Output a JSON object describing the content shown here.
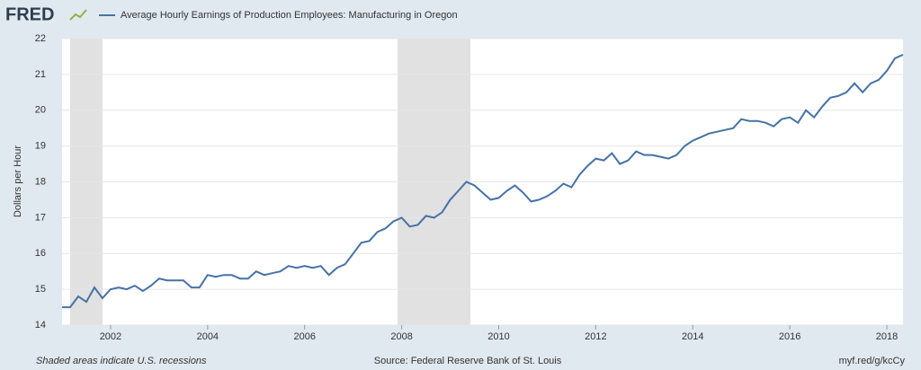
{
  "chart_data": {
    "type": "line",
    "logo": "FRED",
    "title": "Average Hourly Earnings of Production Employees: Manufacturing in Oregon",
    "ylabel": "Dollars per Hour",
    "note": "Shaded areas indicate U.S. recessions",
    "source": "Source: Federal Reserve Bank of St. Louis",
    "link": "myf.red/g/kcCy",
    "xlim": [
      2001,
      2018.333
    ],
    "xticks": [
      2002,
      2004,
      2006,
      2008,
      2010,
      2012,
      2014,
      2016,
      2018
    ],
    "ylim": [
      14,
      22
    ],
    "yticks": [
      14,
      15,
      16,
      17,
      18,
      19,
      20,
      21,
      22
    ],
    "grid": true,
    "recessions": [
      [
        2001.167,
        2001.833
      ],
      [
        2007.917,
        2009.417
      ]
    ],
    "recession_color": "#e1e1e1",
    "series": [
      {
        "name": "Average Hourly Earnings of Production Employees: Manufacturing in Oregon",
        "color": "#4572a7",
        "x": [
          2001,
          2001.167,
          2001.333,
          2001.5,
          2001.667,
          2001.833,
          2002,
          2002.167,
          2002.333,
          2002.5,
          2002.667,
          2002.833,
          2003,
          2003.167,
          2003.333,
          2003.5,
          2003.667,
          2003.833,
          2004,
          2004.167,
          2004.333,
          2004.5,
          2004.667,
          2004.833,
          2005,
          2005.167,
          2005.333,
          2005.5,
          2005.667,
          2005.833,
          2006,
          2006.167,
          2006.333,
          2006.5,
          2006.667,
          2006.833,
          2007,
          2007.167,
          2007.333,
          2007.5,
          2007.667,
          2007.833,
          2008,
          2008.167,
          2008.333,
          2008.5,
          2008.667,
          2008.833,
          2009,
          2009.167,
          2009.333,
          2009.5,
          2009.667,
          2009.833,
          2010,
          2010.167,
          2010.333,
          2010.5,
          2010.667,
          2010.833,
          2011,
          2011.167,
          2011.333,
          2011.5,
          2011.667,
          2011.833,
          2012,
          2012.167,
          2012.333,
          2012.5,
          2012.667,
          2012.833,
          2013,
          2013.167,
          2013.333,
          2013.5,
          2013.667,
          2013.833,
          2014,
          2014.167,
          2014.333,
          2014.5,
          2014.667,
          2014.833,
          2015,
          2015.167,
          2015.333,
          2015.5,
          2015.667,
          2015.833,
          2016,
          2016.167,
          2016.333,
          2016.5,
          2016.667,
          2016.833,
          2017,
          2017.167,
          2017.333,
          2017.5,
          2017.667,
          2017.833,
          2018,
          2018.167,
          2018.333
        ],
        "values": [
          14.5,
          14.5,
          14.8,
          14.65,
          15.05,
          14.75,
          15.0,
          15.05,
          15.0,
          15.1,
          14.95,
          15.1,
          15.3,
          15.25,
          15.25,
          15.25,
          15.05,
          15.05,
          15.4,
          15.35,
          15.4,
          15.4,
          15.3,
          15.3,
          15.5,
          15.4,
          15.45,
          15.5,
          15.65,
          15.6,
          15.65,
          15.6,
          15.65,
          15.4,
          15.6,
          15.7,
          16.0,
          16.3,
          16.35,
          16.6,
          16.7,
          16.9,
          17.0,
          16.75,
          16.8,
          17.05,
          17.0,
          17.15,
          17.5,
          17.75,
          18.0,
          17.9,
          17.7,
          17.5,
          17.55,
          17.75,
          17.9,
          17.7,
          17.45,
          17.5,
          17.6,
          17.75,
          17.95,
          17.85,
          18.2,
          18.45,
          18.65,
          18.6,
          18.8,
          18.5,
          18.6,
          18.85,
          18.75,
          18.75,
          18.7,
          18.65,
          18.75,
          19.0,
          19.15,
          19.25,
          19.35,
          19.4,
          19.45,
          19.5,
          19.75,
          19.7,
          19.7,
          19.65,
          19.55,
          19.75,
          19.8,
          19.65,
          20.0,
          19.8,
          20.1,
          20.35,
          20.4,
          20.5,
          20.75,
          20.5,
          20.75,
          20.85,
          21.1,
          21.45,
          21.55
        ]
      }
    ]
  }
}
